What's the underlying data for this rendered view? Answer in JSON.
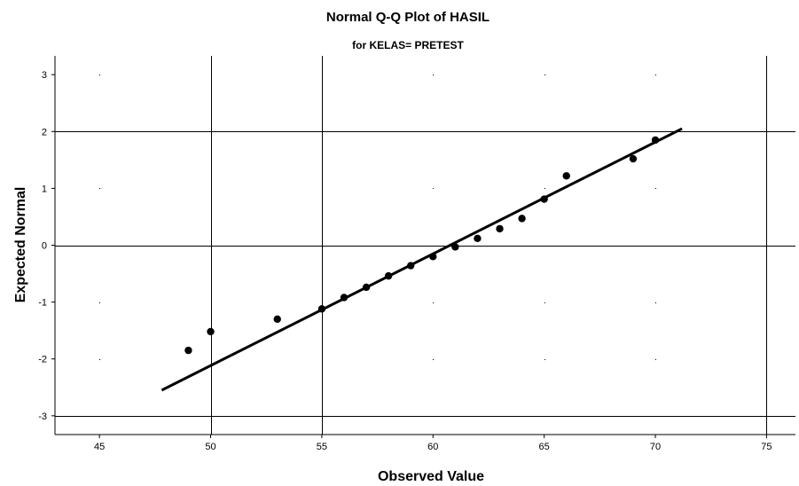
{
  "chart_data": {
    "type": "scatter",
    "title": "Normal Q-Q Plot of HASIL",
    "subtitle": "for KELAS= PRETEST",
    "xlabel": "Observed Value",
    "ylabel": "Expected Normal",
    "xlim": [
      43,
      76.3
    ],
    "ylim": [
      -3.33,
      3.33
    ],
    "x_ticks": [
      45,
      50,
      55,
      60,
      65,
      70,
      75
    ],
    "y_ticks": [
      3,
      2,
      1,
      0,
      -1,
      -2,
      -3
    ],
    "gridlines_x": [
      50,
      55,
      75
    ],
    "gridlines_y": [
      2,
      0,
      -3
    ],
    "points": [
      {
        "x": 49,
        "y": -1.85
      },
      {
        "x": 50,
        "y": -1.52
      },
      {
        "x": 53,
        "y": -1.3
      },
      {
        "x": 55,
        "y": -1.12
      },
      {
        "x": 56,
        "y": -0.92
      },
      {
        "x": 57,
        "y": -0.74
      },
      {
        "x": 58,
        "y": -0.54
      },
      {
        "x": 59,
        "y": -0.36
      },
      {
        "x": 60,
        "y": -0.2
      },
      {
        "x": 61,
        "y": -0.03
      },
      {
        "x": 62,
        "y": 0.12
      },
      {
        "x": 63,
        "y": 0.29
      },
      {
        "x": 64,
        "y": 0.47
      },
      {
        "x": 65,
        "y": 0.81
      },
      {
        "x": 66,
        "y": 1.22
      },
      {
        "x": 69,
        "y": 1.52
      },
      {
        "x": 70,
        "y": 1.85
      }
    ],
    "reference_line": {
      "x1": 47.8,
      "y1": -2.55,
      "x2": 71.2,
      "y2": 2.05
    }
  }
}
